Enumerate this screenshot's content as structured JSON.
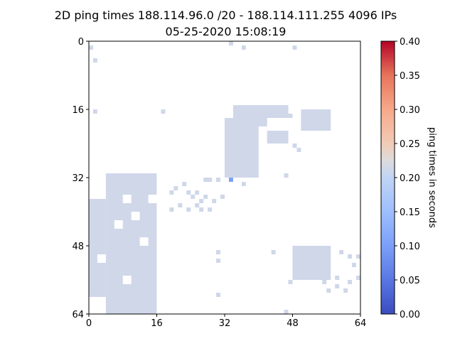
{
  "chart_data": {
    "type": "heatmap",
    "title": "2D ping times 188.114.96.0 /20 - 188.114.111.255 4096 IPs",
    "subtitle": "05-25-2020 15:08:19",
    "xlabel": "",
    "ylabel": "",
    "grid_size": 64,
    "xlim": [
      0,
      64
    ],
    "ylim": [
      0,
      64
    ],
    "x_ticks": [
      "0",
      "16",
      "32",
      "48",
      "64"
    ],
    "y_ticks": [
      "0",
      "16",
      "32",
      "48",
      "64"
    ],
    "colorbar": {
      "label": "ping times in seconds",
      "range": [
        0.0,
        0.4
      ],
      "ticks": [
        "0.00",
        "0.05",
        "0.10",
        "0.15",
        "0.20",
        "0.25",
        "0.30",
        "0.35",
        "0.40"
      ],
      "colormap": "coolwarm"
    },
    "grid": false,
    "dominant_value": 0.19,
    "cell_color": "#cfd7e9",
    "outlier": {
      "col": 33,
      "row": 32,
      "value": 0.14,
      "color": "#7b9ff9"
    },
    "regions": [
      {
        "c0": 4,
        "r0": 31,
        "c1": 16,
        "r1": 64,
        "value": 0.19
      },
      {
        "c0": 0,
        "r0": 37,
        "c1": 4,
        "r1": 60,
        "value": 0.19
      },
      {
        "c0": 32,
        "r0": 18,
        "c1": 40,
        "r1": 32,
        "value": 0.19
      },
      {
        "c0": 34,
        "r0": 15,
        "c1": 47,
        "r1": 24,
        "value": 0.19
      },
      {
        "c0": 50,
        "r0": 16,
        "c1": 57,
        "r1": 21,
        "value": 0.19
      },
      {
        "c0": 48,
        "r0": 48,
        "c1": 57,
        "r1": 56,
        "value": 0.19
      }
    ],
    "points": [
      [
        0,
        1
      ],
      [
        1,
        4
      ],
      [
        33,
        0
      ],
      [
        36,
        1
      ],
      [
        48,
        1
      ],
      [
        1,
        16
      ],
      [
        17,
        16
      ],
      [
        36,
        33
      ],
      [
        28,
        32
      ],
      [
        27,
        32
      ],
      [
        22,
        33
      ],
      [
        20,
        34
      ],
      [
        19,
        35
      ],
      [
        23,
        35
      ],
      [
        25,
        35
      ],
      [
        24,
        36
      ],
      [
        27,
        36
      ],
      [
        26,
        37
      ],
      [
        29,
        37
      ],
      [
        21,
        38
      ],
      [
        25,
        38
      ],
      [
        19,
        39
      ],
      [
        23,
        39
      ],
      [
        26,
        39
      ],
      [
        28,
        39
      ],
      [
        30,
        32
      ],
      [
        31,
        36
      ],
      [
        46,
        31
      ],
      [
        30,
        49
      ],
      [
        30,
        51
      ],
      [
        30,
        59
      ],
      [
        46,
        63
      ],
      [
        59,
        49
      ],
      [
        61,
        50
      ],
      [
        63,
        50
      ],
      [
        62,
        52
      ],
      [
        58,
        55
      ],
      [
        58,
        57
      ],
      [
        63,
        55
      ],
      [
        61,
        56
      ],
      [
        60,
        58
      ],
      [
        56,
        58
      ],
      [
        55,
        56
      ],
      [
        49,
        25
      ],
      [
        47,
        17
      ],
      [
        48,
        24
      ],
      [
        41,
        16
      ],
      [
        43,
        49
      ],
      [
        47,
        56
      ]
    ],
    "holes": [
      {
        "c0": 8,
        "r0": 36,
        "c1": 10,
        "r1": 38
      },
      {
        "c0": 10,
        "r0": 40,
        "c1": 12,
        "r1": 42
      },
      {
        "c0": 6,
        "r0": 42,
        "c1": 8,
        "r1": 44
      },
      {
        "c0": 12,
        "r0": 46,
        "c1": 14,
        "r1": 48
      },
      {
        "c0": 8,
        "r0": 55,
        "c1": 10,
        "r1": 57
      },
      {
        "c0": 14,
        "r0": 36,
        "c1": 16,
        "r1": 38
      },
      {
        "c0": 2,
        "r0": 50,
        "c1": 4,
        "r1": 52
      },
      {
        "c0": 42,
        "r0": 18,
        "c1": 47,
        "r1": 21
      },
      {
        "c0": 40,
        "r0": 20,
        "c1": 42,
        "r1": 24
      }
    ]
  }
}
